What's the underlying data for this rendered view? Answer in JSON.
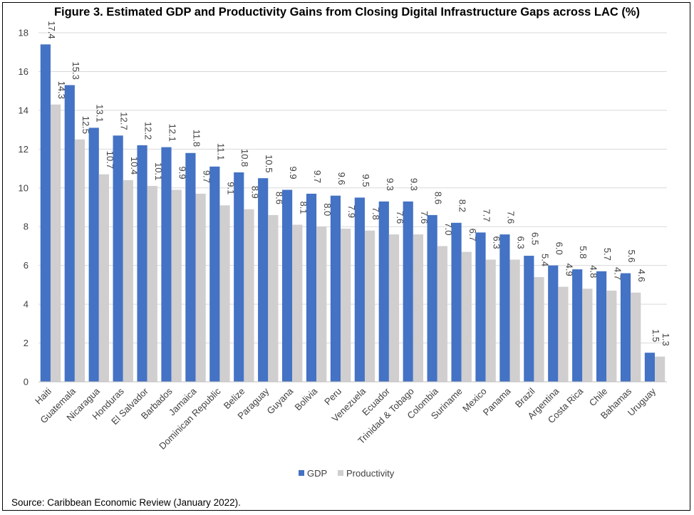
{
  "title": "Figure 3. Estimated GDP and Productivity Gains from Closing Digital Infrastructure Gaps across LAC (%)",
  "source": "Source: Caribbean Economic Review (January 2022).",
  "colors": {
    "gdp": "#4472C4",
    "productivity": "#D0CECE",
    "grid": "#D9D9D9",
    "axis": "#BFBFBF",
    "text": "#404040"
  },
  "chart_data": {
    "type": "bar",
    "categories": [
      "Haiti",
      "Guatemala",
      "Nicaragua",
      "Honduras",
      "El Salvador",
      "Barbados",
      "Jamaica",
      "Dominican Republic",
      "Belize",
      "Paraguay",
      "Guyana",
      "Bolivia",
      "Peru",
      "Venezuela",
      "Ecuador",
      "Trinidad & Tobago",
      "Colombia",
      "Suriname",
      "Mexico",
      "Panama",
      "Brazil",
      "Argentina",
      "Costa Rica",
      "Chile",
      "Bahamas",
      "Uruguay"
    ],
    "series": [
      {
        "name": "GDP",
        "values": [
          17.4,
          15.3,
          13.1,
          12.7,
          12.2,
          12.1,
          11.8,
          11.1,
          10.8,
          10.5,
          9.9,
          9.7,
          9.6,
          9.5,
          9.3,
          9.3,
          8.6,
          8.2,
          7.7,
          7.6,
          6.5,
          6.0,
          5.8,
          5.7,
          5.6,
          1.5
        ]
      },
      {
        "name": "Productivity",
        "values": [
          14.3,
          12.5,
          10.7,
          10.4,
          10.1,
          9.9,
          9.7,
          9.1,
          8.9,
          8.6,
          8.1,
          8.0,
          7.9,
          7.8,
          7.6,
          7.6,
          7.0,
          6.7,
          6.3,
          6.3,
          5.4,
          4.9,
          4.8,
          4.7,
          4.6,
          1.3
        ]
      }
    ],
    "ylim": [
      0,
      18
    ],
    "yticks": [
      0,
      2,
      4,
      6,
      8,
      10,
      12,
      14,
      16,
      18
    ],
    "grid": true,
    "legend": "bottom-center"
  }
}
